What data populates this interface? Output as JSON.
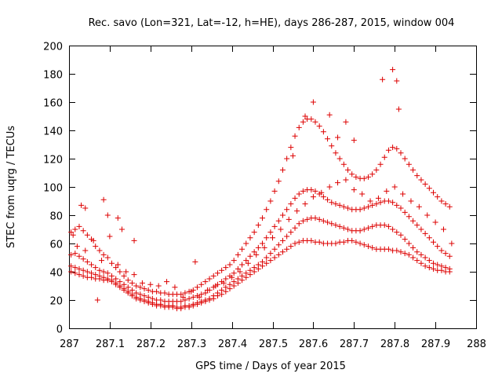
{
  "chart_data": {
    "type": "scatter",
    "title": "Rec. savo (Lon=321, Lat=-12, h=HE), days 286-287, 2015, window 004",
    "xlabel": "GPS time / Days of year 2015",
    "ylabel": "STEC from uqrg / TECUs",
    "xlim": [
      287,
      288
    ],
    "ylim": [
      0,
      200
    ],
    "xticks": [
      "287",
      "287.1",
      "287.2",
      "287.3",
      "287.4",
      "287.5",
      "287.6",
      "287.7",
      "287.8",
      "287.9",
      "288"
    ],
    "yticks": [
      "0",
      "20",
      "40",
      "60",
      "80",
      "100",
      "120",
      "140",
      "160",
      "180",
      "200"
    ],
    "grid": false,
    "legend": "none",
    "marker": "plus",
    "color": "#dd0000",
    "series": [
      {
        "x": [
          287.005,
          287.015,
          287.025,
          287.035,
          287.045,
          287.055,
          287.065,
          287.075,
          287.085,
          287.095,
          287.105,
          287.115,
          287.125,
          287.135,
          287.145,
          287.155,
          287.165,
          287.175,
          287.185,
          287.195,
          287.205,
          287.215,
          287.225,
          287.235,
          287.245,
          287.255,
          287.265,
          287.275,
          287.285,
          287.295,
          287.305,
          287.315,
          287.325,
          287.335,
          287.345,
          287.355,
          287.365,
          287.375,
          287.385,
          287.395,
          287.405,
          287.415,
          287.425,
          287.435,
          287.445,
          287.455,
          287.465,
          287.475,
          287.485,
          287.495,
          287.505,
          287.515,
          287.525,
          287.535,
          287.545,
          287.555,
          287.565,
          287.575,
          287.585,
          287.595,
          287.605,
          287.615,
          287.625,
          287.635,
          287.645,
          287.655,
          287.665,
          287.675,
          287.685,
          287.695,
          287.705,
          287.715,
          287.725,
          287.735,
          287.745,
          287.755,
          287.765,
          287.775,
          287.785,
          287.795,
          287.805,
          287.815,
          287.825,
          287.835,
          287.845,
          287.855,
          287.865,
          287.875,
          287.885,
          287.895,
          287.905,
          287.915,
          287.925,
          287.935
        ],
        "y": [
          68,
          70,
          72,
          69,
          66,
          63,
          58,
          55,
          52,
          50,
          46,
          43,
          40,
          37,
          34,
          32,
          30,
          29,
          28,
          27,
          26,
          26,
          25,
          25,
          24,
          24,
          24,
          24,
          25,
          26,
          27,
          29,
          31,
          33,
          35,
          37,
          39,
          41,
          43,
          45,
          48,
          52,
          56,
          60,
          64,
          68,
          73,
          78,
          84,
          90,
          97,
          104,
          112,
          120,
          128,
          136,
          142,
          146,
          148,
          148,
          146,
          143,
          139,
          134,
          129,
          124,
          120,
          116,
          112,
          109,
          107,
          106,
          106,
          107,
          109,
          112,
          116,
          121,
          126,
          128,
          127,
          124,
          120,
          116,
          112,
          108,
          105,
          102,
          99,
          96,
          93,
          90,
          88,
          86
        ]
      },
      {
        "x": [
          287.005,
          287.015,
          287.025,
          287.035,
          287.045,
          287.055,
          287.065,
          287.075,
          287.085,
          287.095,
          287.105,
          287.115,
          287.125,
          287.135,
          287.145,
          287.155,
          287.165,
          287.175,
          287.185,
          287.195,
          287.205,
          287.215,
          287.225,
          287.235,
          287.245,
          287.255,
          287.265,
          287.275,
          287.285,
          287.295,
          287.305,
          287.315,
          287.325,
          287.335,
          287.345,
          287.355,
          287.365,
          287.375,
          287.385,
          287.395,
          287.405,
          287.415,
          287.425,
          287.435,
          287.445,
          287.455,
          287.465,
          287.475,
          287.485,
          287.495,
          287.505,
          287.515,
          287.525,
          287.535,
          287.545,
          287.555,
          287.565,
          287.575,
          287.585,
          287.595,
          287.605,
          287.615,
          287.625,
          287.635,
          287.645,
          287.655,
          287.665,
          287.675,
          287.685,
          287.695,
          287.705,
          287.715,
          287.725,
          287.735,
          287.745,
          287.755,
          287.765,
          287.775,
          287.785,
          287.795,
          287.805,
          287.815,
          287.825,
          287.835,
          287.845,
          287.855,
          287.865,
          287.875,
          287.885,
          287.895,
          287.905,
          287.915,
          287.925,
          287.935
        ],
        "y": [
          52,
          53,
          51,
          49,
          47,
          45,
          43,
          41,
          40,
          39,
          37,
          35,
          33,
          31,
          29,
          27,
          25,
          24,
          23,
          22,
          21,
          20,
          20,
          19,
          19,
          19,
          19,
          19,
          20,
          21,
          22,
          23,
          24,
          25,
          27,
          29,
          31,
          33,
          35,
          37,
          39,
          42,
          45,
          48,
          51,
          54,
          57,
          60,
          64,
          68,
          72,
          76,
          80,
          84,
          88,
          92,
          95,
          97,
          98,
          98,
          97,
          95,
          93,
          91,
          89,
          88,
          87,
          86,
          85,
          84,
          84,
          84,
          85,
          86,
          87,
          88,
          89,
          90,
          90,
          89,
          87,
          85,
          82,
          79,
          76,
          73,
          70,
          67,
          64,
          61,
          58,
          55,
          53,
          51
        ]
      },
      {
        "x": [
          287.005,
          287.015,
          287.025,
          287.035,
          287.045,
          287.055,
          287.065,
          287.075,
          287.085,
          287.095,
          287.105,
          287.115,
          287.125,
          287.135,
          287.145,
          287.155,
          287.165,
          287.175,
          287.185,
          287.195,
          287.205,
          287.215,
          287.225,
          287.235,
          287.245,
          287.255,
          287.265,
          287.275,
          287.285,
          287.295,
          287.305,
          287.315,
          287.325,
          287.335,
          287.345,
          287.355,
          287.365,
          287.375,
          287.385,
          287.395,
          287.405,
          287.415,
          287.425,
          287.435,
          287.445,
          287.455,
          287.465,
          287.475,
          287.485,
          287.495,
          287.505,
          287.515,
          287.525,
          287.535,
          287.545,
          287.555,
          287.565,
          287.575,
          287.585,
          287.595,
          287.605,
          287.615,
          287.625,
          287.635,
          287.645,
          287.655,
          287.665,
          287.675,
          287.685,
          287.695,
          287.705,
          287.715,
          287.725,
          287.735,
          287.745,
          287.755,
          287.765,
          287.775,
          287.785,
          287.795,
          287.805,
          287.815,
          287.825,
          287.835,
          287.845,
          287.855,
          287.865,
          287.875,
          287.885,
          287.895,
          287.905,
          287.915,
          287.925,
          287.935
        ],
        "y": [
          44,
          43,
          42,
          41,
          40,
          39,
          38,
          37,
          36,
          35,
          34,
          32,
          30,
          28,
          26,
          24,
          22,
          21,
          20,
          19,
          18,
          17,
          17,
          16,
          16,
          16,
          15,
          15,
          16,
          16,
          17,
          18,
          19,
          20,
          21,
          23,
          25,
          27,
          29,
          31,
          33,
          35,
          37,
          39,
          41,
          43,
          45,
          47,
          50,
          53,
          56,
          59,
          62,
          65,
          68,
          71,
          74,
          76,
          77,
          78,
          78,
          77,
          76,
          75,
          74,
          73,
          72,
          71,
          70,
          69,
          69,
          69,
          70,
          71,
          72,
          73,
          73,
          73,
          72,
          70,
          68,
          66,
          63,
          60,
          57,
          54,
          52,
          50,
          48,
          46,
          45,
          44,
          43,
          42
        ]
      },
      {
        "x": [
          287.005,
          287.015,
          287.025,
          287.035,
          287.045,
          287.055,
          287.065,
          287.075,
          287.085,
          287.095,
          287.105,
          287.115,
          287.125,
          287.135,
          287.145,
          287.155,
          287.165,
          287.175,
          287.185,
          287.195,
          287.205,
          287.215,
          287.225,
          287.235,
          287.245,
          287.255,
          287.265,
          287.275,
          287.285,
          287.295,
          287.305,
          287.315,
          287.325,
          287.335,
          287.345,
          287.355,
          287.365,
          287.375,
          287.385,
          287.395,
          287.405,
          287.415,
          287.425,
          287.435,
          287.445,
          287.455,
          287.465,
          287.475,
          287.485,
          287.495,
          287.505,
          287.515,
          287.525,
          287.535,
          287.545,
          287.555,
          287.565,
          287.575,
          287.585,
          287.595,
          287.605,
          287.615,
          287.625,
          287.635,
          287.645,
          287.655,
          287.665,
          287.675,
          287.685,
          287.695,
          287.705,
          287.715,
          287.725,
          287.735,
          287.745,
          287.755,
          287.765,
          287.775,
          287.785,
          287.795,
          287.805,
          287.815,
          287.825,
          287.835,
          287.845,
          287.855,
          287.865,
          287.875,
          287.885,
          287.895,
          287.905,
          287.915,
          287.925,
          287.935
        ],
        "y": [
          40,
          39,
          38,
          37,
          36,
          36,
          35,
          35,
          34,
          34,
          33,
          31,
          29,
          27,
          25,
          23,
          21,
          20,
          19,
          18,
          17,
          16,
          16,
          15,
          15,
          15,
          14,
          14,
          15,
          15,
          16,
          17,
          18,
          19,
          20,
          21,
          23,
          24,
          26,
          28,
          30,
          32,
          34,
          36,
          38,
          40,
          42,
          44,
          46,
          48,
          50,
          52,
          54,
          56,
          58,
          60,
          61,
          62,
          62,
          62,
          61,
          61,
          60,
          60,
          60,
          60,
          61,
          61,
          62,
          62,
          61,
          60,
          59,
          58,
          57,
          56,
          56,
          56,
          56,
          55,
          55,
          54,
          53,
          52,
          50,
          48,
          46,
          44,
          43,
          42,
          41,
          41,
          40,
          40
        ]
      },
      {
        "x": [
          287.02,
          287.04,
          287.06,
          287.08,
          287.1,
          287.12,
          287.14,
          287.16,
          287.18,
          287.2,
          287.22,
          287.24,
          287.26,
          287.28,
          287.3,
          287.32,
          287.34,
          287.36,
          287.38,
          287.4,
          287.42,
          287.44,
          287.46,
          287.48,
          287.5,
          287.52,
          287.54,
          287.56,
          287.58,
          287.6,
          287.62,
          287.64,
          287.66,
          287.68,
          287.7,
          287.72,
          287.74,
          287.76,
          287.78,
          287.8,
          287.82,
          287.84,
          287.86,
          287.88,
          287.9,
          287.92,
          287.94
        ],
        "y": [
          58,
          55,
          62,
          48,
          65,
          45,
          40,
          38,
          32,
          31,
          30,
          33,
          29,
          22,
          26,
          22,
          27,
          30,
          32,
          36,
          40,
          46,
          52,
          57,
          64,
          70,
          77,
          83,
          88,
          93,
          96,
          100,
          103,
          105,
          98,
          95,
          90,
          92,
          97,
          100,
          95,
          90,
          86,
          80,
          75,
          70,
          60
        ]
      },
      {
        "x": [
          287.01,
          287.03,
          287.04,
          287.07,
          287.085,
          287.095,
          287.12,
          287.13,
          287.16,
          287.31,
          287.55,
          287.58,
          287.6,
          287.64,
          287.66,
          287.68,
          287.7,
          287.77,
          287.795,
          287.805,
          287.81
        ],
        "y": [
          66,
          87,
          85,
          20,
          91,
          80,
          78,
          70,
          62,
          47,
          122,
          150,
          160,
          151,
          135,
          146,
          133,
          176,
          183,
          175,
          155
        ]
      }
    ]
  }
}
